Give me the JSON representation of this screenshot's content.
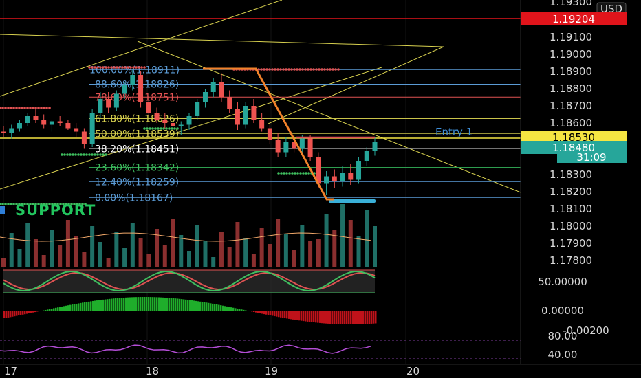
{
  "chart_data": {
    "type": "candlestick",
    "instrument_currency": "USD",
    "price_axis": {
      "ylim": [
        1.1775,
        1.1935
      ],
      "ticks": [
        "1.19300",
        "1.19100",
        "1.19000",
        "1.18900",
        "1.18800",
        "1.18700",
        "1.18600",
        "1.18300",
        "1.18200",
        "1.18100",
        "1.18000",
        "1.17900",
        "1.17800"
      ]
    },
    "price_tags": {
      "red_line": {
        "value": "1.19204",
        "price": 1.19204,
        "color": "#e0141b"
      },
      "entry": {
        "value": "1.18530",
        "price": 1.1853,
        "color": "#f5e642"
      },
      "current": {
        "value": "1.18480",
        "price": 1.1848,
        "color": "#26a69a"
      },
      "countdown": "31:09"
    },
    "x_axis": {
      "ticks": [
        "17",
        "18",
        "19",
        "20"
      ]
    },
    "fibonacci": [
      {
        "label": "100.00%(1.18911)",
        "price": 1.18911,
        "color": "#5b9bd5",
        "label_color": "#5b9bd5"
      },
      {
        "label": "88.60%(1.18826)",
        "price": 1.18826,
        "color": "#5b9bd5",
        "label_color": "#5b9bd5"
      },
      {
        "label": "78.60%(1.18751)",
        "price": 1.18751,
        "color": "#e05252",
        "label_color": "#e05252"
      },
      {
        "label": "61.80%(1.18626)",
        "price": 1.18626,
        "color": "#c9c24a",
        "label_color": "#d8d14f"
      },
      {
        "label": "50.00%(1.18539)",
        "price": 1.18539,
        "color": "#c9c24a",
        "label_color": "#d8d14f"
      },
      {
        "label": "38.20%(1.18451)",
        "price": 1.18451,
        "color": "#9a9a9a",
        "label_color": "#ffffff"
      },
      {
        "label": "23.60%(1.18342)",
        "price": 1.18342,
        "color": "#2e9d4f",
        "label_color": "#3fbf5f"
      },
      {
        "label": "12.40%(1.18259)",
        "price": 1.18259,
        "color": "#5b9bd5",
        "label_color": "#5b9bd5"
      },
      {
        "label": "0.00%(1.18167)",
        "price": 1.18167,
        "color": "#5b9bd5",
        "label_color": "#5b9bd5"
      }
    ],
    "annotations": {
      "entry_label": "Entry 1",
      "support_label": "SUPPORT"
    },
    "stochastic_axis": {
      "ticks": [
        "50.00000"
      ]
    },
    "macd_axis": {
      "ticks": [
        "0.00000",
        "-0.00200"
      ]
    },
    "rsi_axis": {
      "ticks": [
        "80.00",
        "40.00"
      ]
    },
    "candles_approx": [
      [
        1.1855,
        1.1858,
        1.1852,
        1.1854
      ],
      [
        1.1854,
        1.1859,
        1.1851,
        1.1857
      ],
      [
        1.1857,
        1.1862,
        1.1855,
        1.186
      ],
      [
        1.186,
        1.1866,
        1.1858,
        1.1864
      ],
      [
        1.1864,
        1.1868,
        1.186,
        1.1862
      ],
      [
        1.1862,
        1.1865,
        1.1857,
        1.1859
      ],
      [
        1.1859,
        1.1862,
        1.1855,
        1.1861
      ],
      [
        1.1861,
        1.1864,
        1.1858,
        1.186
      ],
      [
        1.186,
        1.1862,
        1.1856,
        1.1857
      ],
      [
        1.1857,
        1.186,
        1.1852,
        1.1855
      ],
      [
        1.1855,
        1.1857,
        1.1845,
        1.1848
      ],
      [
        1.1848,
        1.1868,
        1.1846,
        1.1866
      ],
      [
        1.1866,
        1.1878,
        1.1863,
        1.1874
      ],
      [
        1.1874,
        1.1878,
        1.1866,
        1.1869
      ],
      [
        1.1869,
        1.1879,
        1.1867,
        1.1877
      ],
      [
        1.1877,
        1.1884,
        1.1874,
        1.1882
      ],
      [
        1.1882,
        1.1891,
        1.1879,
        1.1888
      ],
      [
        1.1888,
        1.189,
        1.1869,
        1.1872
      ],
      [
        1.1872,
        1.1876,
        1.1864,
        1.1866
      ],
      [
        1.1866,
        1.1869,
        1.186,
        1.1862
      ],
      [
        1.1862,
        1.1866,
        1.1857,
        1.186
      ],
      [
        1.186,
        1.1864,
        1.1854,
        1.1858
      ],
      [
        1.1858,
        1.1861,
        1.1853,
        1.1859
      ],
      [
        1.1859,
        1.1866,
        1.1856,
        1.1864
      ],
      [
        1.1864,
        1.1874,
        1.1862,
        1.1872
      ],
      [
        1.1872,
        1.188,
        1.1869,
        1.1878
      ],
      [
        1.1878,
        1.1886,
        1.1875,
        1.1884
      ],
      [
        1.1884,
        1.1889,
        1.1872,
        1.1875
      ],
      [
        1.1875,
        1.1879,
        1.1866,
        1.1868
      ],
      [
        1.1868,
        1.1872,
        1.1856,
        1.1859
      ],
      [
        1.1859,
        1.1872,
        1.1857,
        1.187
      ],
      [
        1.187,
        1.1874,
        1.186,
        1.1862
      ],
      [
        1.1862,
        1.1866,
        1.1855,
        1.1857
      ],
      [
        1.1857,
        1.1859,
        1.1848,
        1.185
      ],
      [
        1.185,
        1.1854,
        1.184,
        1.1843
      ],
      [
        1.1843,
        1.1852,
        1.184,
        1.1849
      ],
      [
        1.1849,
        1.1853,
        1.1843,
        1.1845
      ],
      [
        1.1845,
        1.1853,
        1.1842,
        1.1851
      ],
      [
        1.1851,
        1.1853,
        1.1838,
        1.184
      ],
      [
        1.184,
        1.1843,
        1.1822,
        1.1825
      ],
      [
        1.1825,
        1.1832,
        1.1818,
        1.1829
      ],
      [
        1.1829,
        1.1833,
        1.1822,
        1.1826
      ],
      [
        1.1826,
        1.1835,
        1.1823,
        1.1831
      ],
      [
        1.1831,
        1.1836,
        1.1824,
        1.1827
      ],
      [
        1.1827,
        1.184,
        1.1825,
        1.1838
      ],
      [
        1.1838,
        1.1846,
        1.1835,
        1.1844
      ],
      [
        1.1844,
        1.1852,
        1.1841,
        1.1849
      ]
    ]
  }
}
